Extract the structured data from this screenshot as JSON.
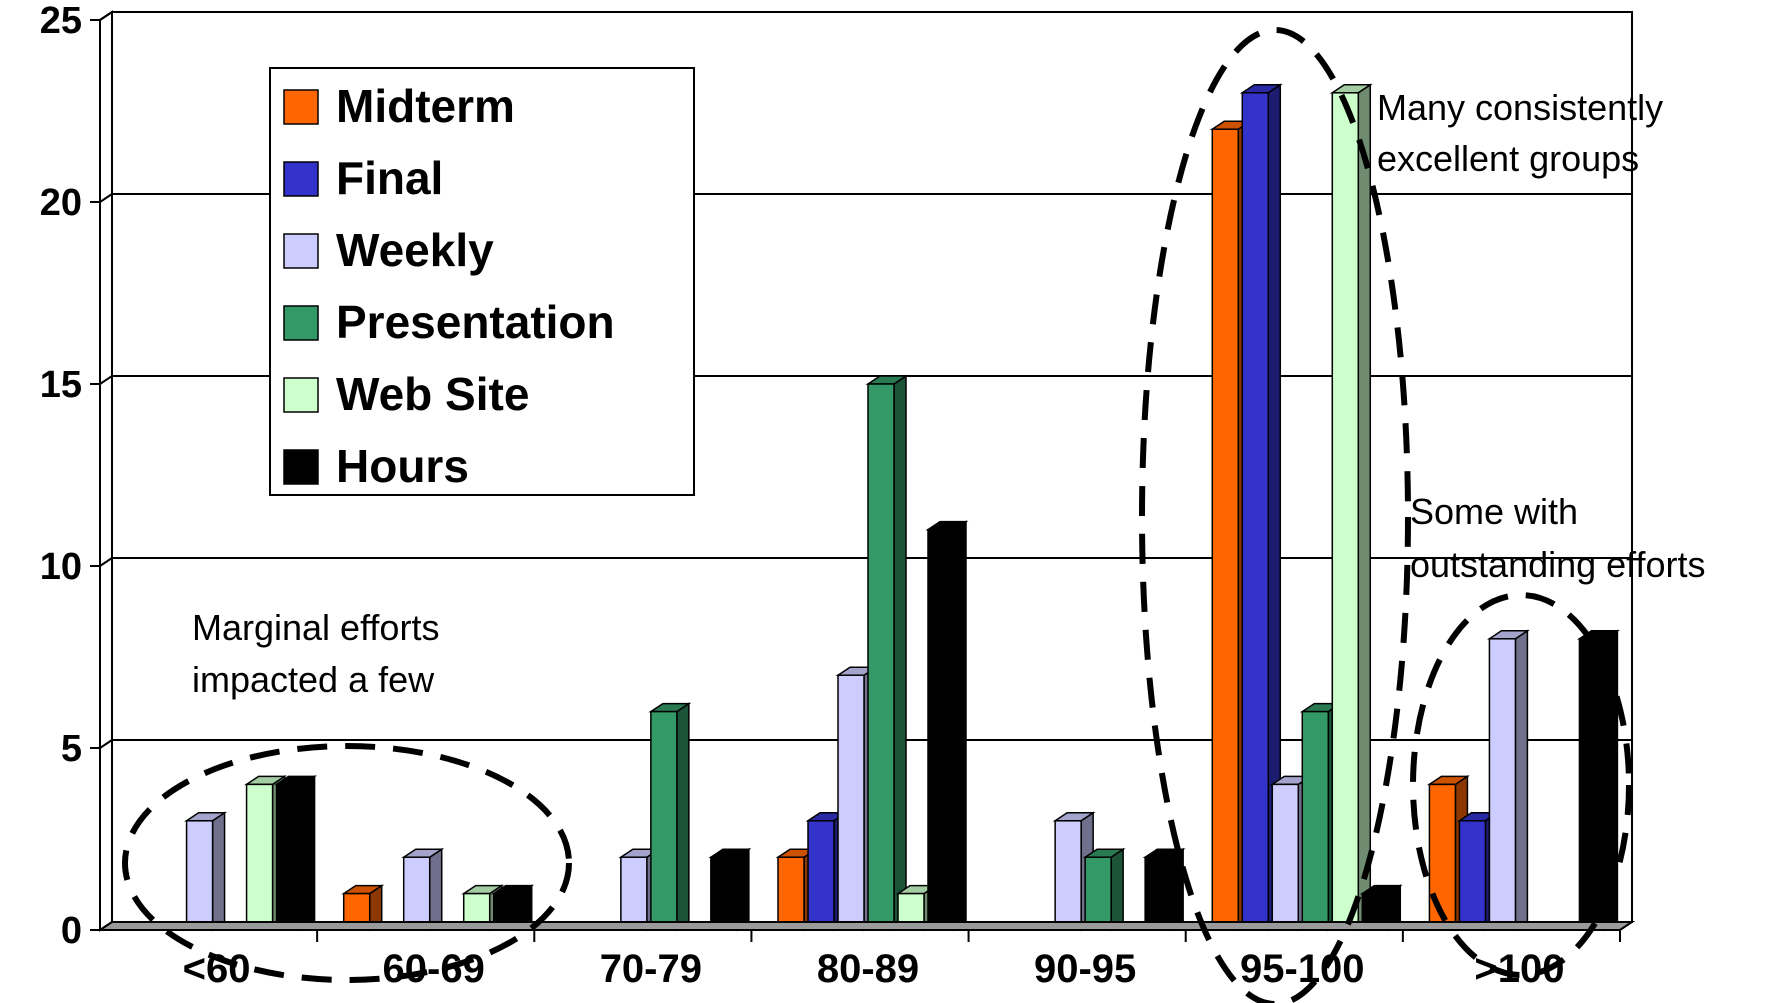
{
  "chart_data": {
    "type": "bar",
    "categories": [
      "<60",
      "60-69",
      "70-79",
      "80-89",
      "90-95",
      "95-100",
      ">100"
    ],
    "series": [
      {
        "name": "Midterm",
        "color": "#ff6600",
        "values": [
          0,
          1,
          0,
          2,
          0,
          22,
          4
        ]
      },
      {
        "name": "Final",
        "color": "#3333cc",
        "values": [
          0,
          0,
          0,
          3,
          0,
          23,
          3
        ]
      },
      {
        "name": "Weekly",
        "color": "#ccccff",
        "values": [
          3,
          2,
          2,
          7,
          3,
          4,
          8
        ]
      },
      {
        "name": "Presentation",
        "color": "#339966",
        "values": [
          0,
          0,
          6,
          15,
          2,
          6,
          0
        ]
      },
      {
        "name": "Web Site",
        "color": "#ccffcc",
        "values": [
          4,
          1,
          0,
          1,
          0,
          23,
          0
        ]
      },
      {
        "name": "Hours",
        "color": "#000000",
        "values": [
          4,
          1,
          2,
          11,
          2,
          1,
          8
        ]
      }
    ],
    "y_ticks": [
      "0",
      "5",
      "10",
      "15",
      "20",
      "25"
    ],
    "ylim": [
      0,
      25
    ],
    "grid": true,
    "legend_position": "top-left",
    "annotations": [
      {
        "lines": [
          "Marginal efforts",
          "impacted a few"
        ]
      },
      {
        "lines": [
          "Many consistently",
          "excellent groups"
        ]
      },
      {
        "lines": [
          "Some with",
          "outstanding efforts"
        ]
      }
    ]
  }
}
